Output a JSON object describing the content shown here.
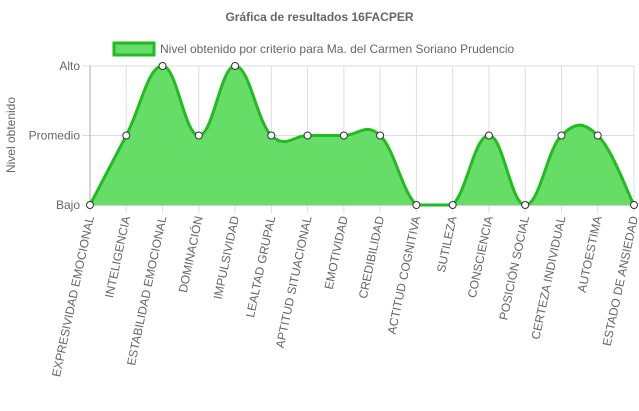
{
  "chart_data": {
    "type": "area",
    "title": "Gráfica de resultados 16FACPER",
    "ylabel": "Nivel obtenido",
    "xlabel": "",
    "y_categories": [
      "Bajo",
      "Promedio",
      "Alto"
    ],
    "categories": [
      "EXPRESIVIDAD EMOCIONAL",
      "INTELIGENCIA",
      "ESTABILIDAD EMOCIONAL",
      "DOMINACIÓN",
      "IMPULSIVIDAD",
      "LEALTAD GRUPAL",
      "APTITUD SITUACIONAL",
      "EMOTIVIDAD",
      "CREDIBILIDAD",
      "ACTITUD COGNITIVA",
      "SUTILEZA",
      "CONSCIENCIA",
      "POSICIÓN SOCIAL",
      "CERTEZA INDIVIDUAL",
      "AUTOESTIMA",
      "ESTADO DE ANSIEDAD"
    ],
    "series": [
      {
        "name": "Nivel obtenido por criterio para Ma. del Carmen Soriano Prudencio",
        "values": [
          0,
          1,
          2,
          1,
          2,
          1,
          1,
          1,
          1,
          0,
          0,
          1,
          0,
          1,
          1,
          0
        ]
      }
    ],
    "ylim": [
      0,
      2
    ],
    "grid": true,
    "legend": "top",
    "colors": {
      "fill": "#66dd66",
      "stroke": "#22bb22",
      "point_fill": "#ffffff",
      "point_stroke": "#333333",
      "grid": "#dddddd",
      "axis": "#aaaaaa"
    }
  }
}
